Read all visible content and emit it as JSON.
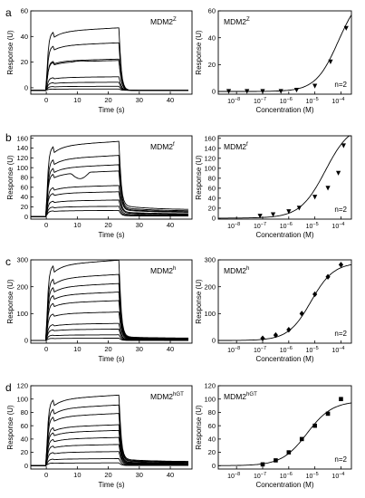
{
  "figure": {
    "x_label_left": "Time (s)",
    "x_label_right": "Concentration (M)",
    "y_label": "Response (U)",
    "n_note": "n=2"
  },
  "chart_data": [
    {
      "panel": "a",
      "type": "line",
      "title_base": "MDM2",
      "title_sup": "Z",
      "xlim": [
        -5,
        47
      ],
      "ylim": [
        -5,
        60
      ],
      "xticks": [
        0,
        10,
        20,
        30,
        40
      ],
      "yticks": [
        0,
        20,
        40,
        60
      ],
      "plateaus": [
        46,
        35,
        23,
        22,
        10,
        6,
        3,
        1
      ],
      "dissociation_tail": 0,
      "baseline_shift": -2,
      "bumps": [
        0,
        0,
        0,
        0.5,
        0,
        0,
        0,
        0
      ]
    },
    {
      "panel": "a",
      "type": "scatter",
      "title_base": "MDM2",
      "title_sup": "Z",
      "x_log": true,
      "xlim_exp": [
        -8.7,
        -3.6
      ],
      "ylim": [
        -2,
        60
      ],
      "xticks_exp": [
        -8,
        -7,
        -6,
        -5,
        -4
      ],
      "yticks": [
        0,
        20,
        40,
        60
      ],
      "marker": "triangle-down",
      "x_exp": [
        -8.3,
        -7.6,
        -7.0,
        -6.3,
        -5.7,
        -5.0,
        -4.4,
        -3.8
      ],
      "y": [
        0,
        0,
        0,
        0,
        1,
        4,
        22,
        47
      ],
      "fit": {
        "bottom": 0,
        "top": 75,
        "log_ec50": -4.1,
        "hill": 1
      }
    },
    {
      "panel": "b",
      "type": "line",
      "title_base": "MDM2",
      "title_sup": "f",
      "xlim": [
        -5,
        47
      ],
      "ylim": [
        -5,
        165
      ],
      "xticks": [
        0,
        10,
        20,
        30,
        40
      ],
      "yticks": [
        0,
        20,
        40,
        60,
        80,
        100,
        120,
        140,
        160
      ],
      "plateaus": [
        145,
        118,
        100,
        88,
        60,
        48,
        32,
        20,
        12
      ],
      "dissociation_tail": 0.16,
      "baseline_shift": 0,
      "bumps": [
        0,
        0,
        0,
        -12,
        0,
        0,
        0,
        0,
        0
      ]
    },
    {
      "panel": "b",
      "type": "scatter",
      "title_base": "MDM2",
      "title_sup": "f",
      "x_log": true,
      "xlim_exp": [
        -8.7,
        -3.6
      ],
      "ylim": [
        -2,
        165
      ],
      "xticks_exp": [
        -8,
        -7,
        -6,
        -5,
        -4
      ],
      "yticks": [
        0,
        20,
        40,
        60,
        80,
        100,
        120,
        140,
        160
      ],
      "marker": "triangle-down",
      "x_exp": [
        -7.1,
        -6.6,
        -6.0,
        -5.6,
        -5.0,
        -4.5,
        -4.1,
        -3.9
      ],
      "y": [
        4,
        7,
        13,
        20,
        42,
        60,
        90,
        145
      ],
      "fit": {
        "bottom": 0,
        "top": 190,
        "log_ec50": -4.6,
        "hill": 0.9
      }
    },
    {
      "panel": "c",
      "type": "line",
      "title_base": "MDM2",
      "title_sup": "h",
      "xlim": [
        -5,
        47
      ],
      "ylim": [
        -10,
        300
      ],
      "xticks": [
        0,
        10,
        20,
        30,
        40
      ],
      "yticks": [
        0,
        100,
        200,
        300
      ],
      "plateaus": [
        282,
        232,
        200,
        170,
        140,
        100,
        60,
        40,
        20,
        8
      ],
      "dissociation_tail": 0.05,
      "baseline_shift": 0,
      "bumps": [
        0,
        0,
        0,
        0,
        0,
        0,
        0,
        0,
        0,
        0
      ]
    },
    {
      "panel": "c",
      "type": "scatter",
      "title_base": "MDM2",
      "title_sup": "h",
      "x_log": true,
      "xlim_exp": [
        -8.7,
        -3.6
      ],
      "ylim": [
        -10,
        300
      ],
      "xticks_exp": [
        -8,
        -7,
        -6,
        -5,
        -4
      ],
      "yticks": [
        0,
        100,
        200,
        300
      ],
      "marker": "diamond",
      "x_exp": [
        -7.0,
        -6.5,
        -6.0,
        -5.5,
        -5.0,
        -4.5,
        -4.0
      ],
      "y": [
        8,
        20,
        40,
        100,
        172,
        237,
        282
      ],
      "fit": {
        "bottom": 0,
        "top": 290,
        "log_ec50": -5.15,
        "hill": 1
      }
    },
    {
      "panel": "d",
      "type": "line",
      "title_base": "MDM2",
      "title_sup": "hGT",
      "xlim": [
        -5,
        47
      ],
      "ylim": [
        -5,
        120
      ],
      "xticks": [
        0,
        10,
        20,
        30,
        40
      ],
      "yticks": [
        0,
        20,
        40,
        60,
        80,
        100,
        120
      ],
      "plateaus": [
        100,
        86,
        74,
        58,
        50,
        40,
        30,
        20,
        10,
        4
      ],
      "dissociation_tail": 0.1,
      "baseline_shift": 0,
      "bumps": [
        0,
        0,
        0,
        0,
        0,
        0,
        0,
        0,
        0,
        0
      ]
    },
    {
      "panel": "d",
      "type": "scatter",
      "title_base": "MDM2",
      "title_sup": "hGT",
      "x_log": true,
      "xlim_exp": [
        -8.7,
        -3.6
      ],
      "ylim": [
        -5,
        120
      ],
      "xticks_exp": [
        -8,
        -7,
        -6,
        -5,
        -4
      ],
      "yticks": [
        0,
        20,
        40,
        60,
        80,
        100,
        120
      ],
      "marker": "square",
      "x_exp": [
        -7.0,
        -6.5,
        -6.0,
        -5.5,
        -5.0,
        -4.5,
        -4.0
      ],
      "y": [
        2,
        8,
        20,
        40,
        60,
        78,
        100
      ],
      "fit": {
        "bottom": 0,
        "top": 97,
        "log_ec50": -5.3,
        "hill": 0.9
      }
    }
  ]
}
